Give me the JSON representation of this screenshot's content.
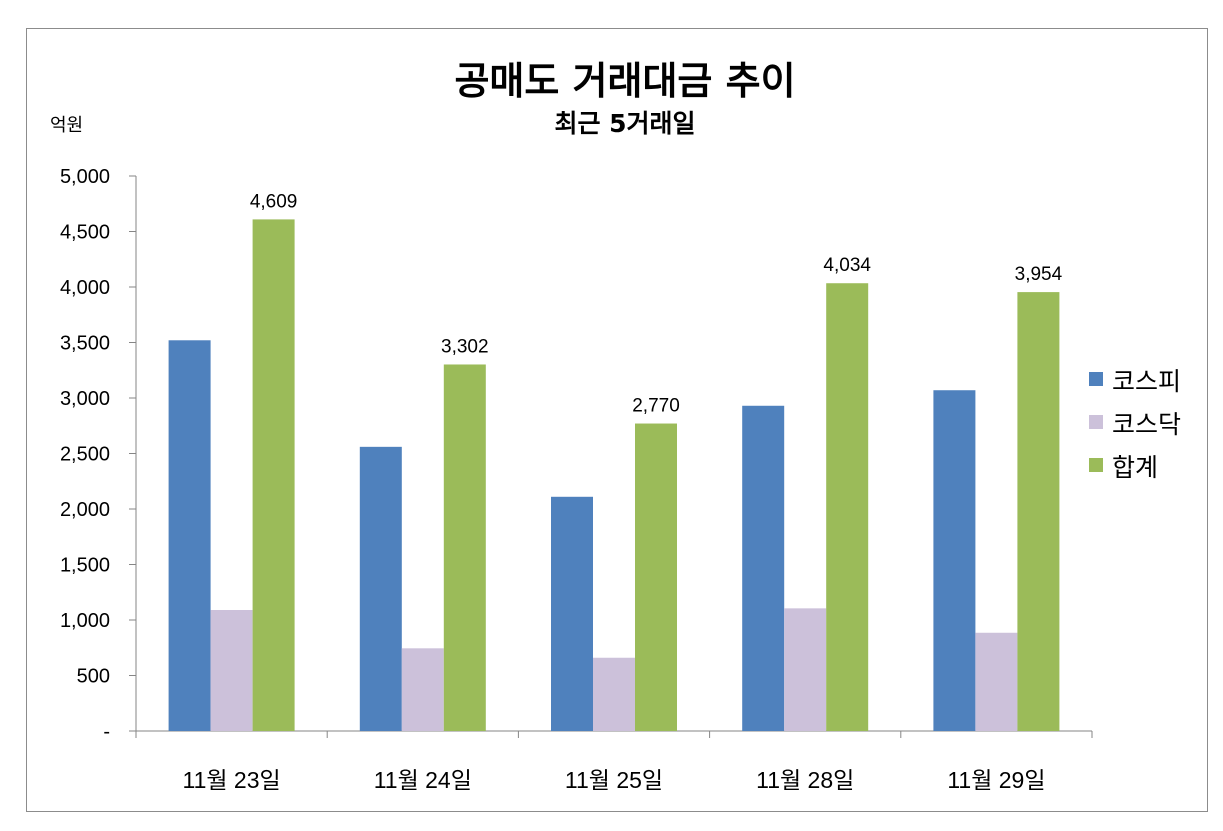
{
  "chart_data": {
    "type": "bar",
    "title": "공매도 거래대금 추이",
    "subtitle": "최근 5거래일",
    "ylabel": "억원",
    "xlabel": "",
    "categories": [
      "11월 23일",
      "11월 24일",
      "11월 25일",
      "11월 28일",
      "11월 29일"
    ],
    "series": [
      {
        "name": "코스피",
        "color": "#4F81BD",
        "values": [
          3520,
          2560,
          2110,
          2930,
          3070
        ]
      },
      {
        "name": "코스닥",
        "color": "#CCC1DA",
        "values": [
          1090,
          745,
          660,
          1105,
          885
        ]
      },
      {
        "name": "합계",
        "color": "#9BBB59",
        "values": [
          4609,
          3302,
          2770,
          4034,
          3954
        ]
      }
    ],
    "data_labels": {
      "series": "합계",
      "labels": [
        "4,609",
        "3,302",
        "2,770",
        "4,034",
        "3,954"
      ]
    },
    "ylim": [
      0,
      5000
    ],
    "y_ticks": [
      0,
      500,
      1000,
      1500,
      2000,
      2500,
      3000,
      3500,
      4000,
      4500,
      5000
    ],
    "y_tick_labels": [
      "-",
      "500",
      "1,000",
      "1,500",
      "2,000",
      "2,500",
      "3,000",
      "3,500",
      "4,000",
      "4,500",
      "5,000"
    ],
    "grid": false,
    "legend_position": "right"
  }
}
